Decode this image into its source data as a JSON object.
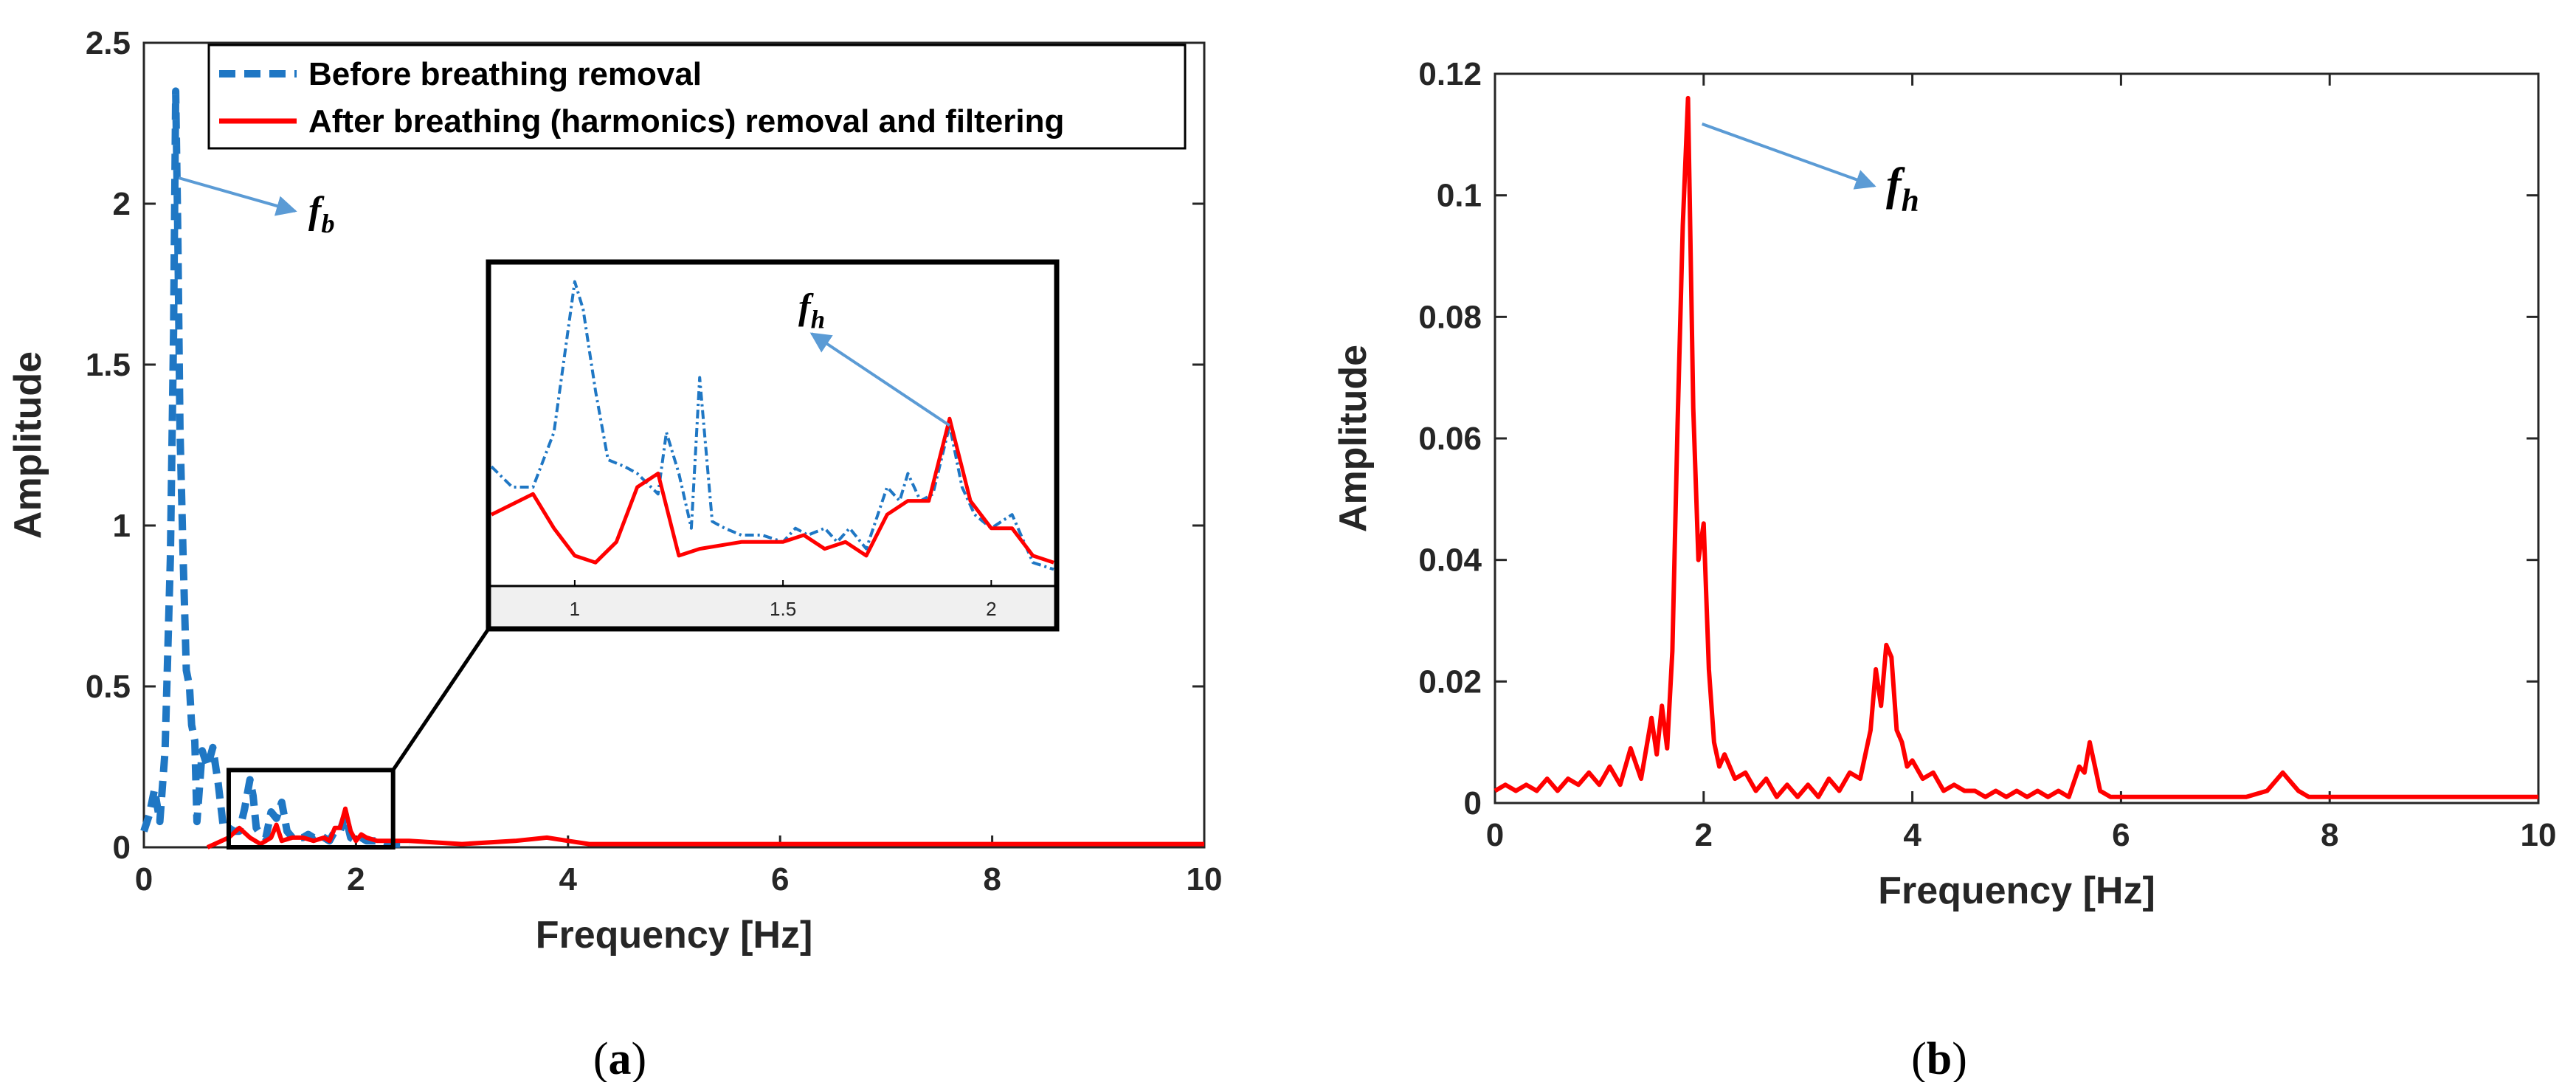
{
  "colors": {
    "before": "#1f77c4",
    "after": "#ff0000",
    "arrow": "#5b9bd5",
    "axis": "#262626",
    "inset_axis_band": "#f0f0f0"
  },
  "panels": {
    "a": {
      "caption_open": "(",
      "caption_letter": "a",
      "caption_close": ")"
    },
    "b": {
      "caption_open": "(",
      "caption_letter": "b",
      "caption_close": ")"
    }
  },
  "chart_data": [
    {
      "id": "a",
      "type": "line",
      "xlabel": "Frequency [Hz]",
      "ylabel": "Amplitude",
      "xlim": [
        0,
        10
      ],
      "ylim": [
        0,
        2.5
      ],
      "xticks": [
        0,
        2,
        4,
        6,
        8,
        10
      ],
      "xtick_labels": [
        "0",
        "2",
        "4",
        "6",
        "8",
        "10"
      ],
      "yticks": [
        0,
        0.5,
        1,
        1.5,
        2,
        2.5
      ],
      "ytick_labels": [
        "0",
        "0.5",
        "1",
        "1.5",
        "2",
        "2.5"
      ],
      "legend": {
        "position": "top",
        "entries": [
          "Before breathing removal",
          "After breathing (harmonics) removal and filtering"
        ]
      },
      "series": [
        {
          "name": "Before breathing removal",
          "style": "dashed",
          "x": [
            0.0,
            0.05,
            0.1,
            0.15,
            0.2,
            0.25,
            0.28,
            0.3,
            0.32,
            0.34,
            0.37,
            0.4,
            0.43,
            0.45,
            0.48,
            0.5,
            0.55,
            0.6,
            0.65,
            0.7,
            0.75,
            0.8,
            0.85,
            0.9,
            0.95,
            1.0,
            1.03,
            1.06,
            1.1,
            1.15,
            1.2,
            1.25,
            1.3,
            1.35,
            1.4,
            1.45,
            1.5,
            1.55,
            1.6,
            1.65,
            1.7,
            1.75,
            1.8,
            1.85,
            1.9,
            1.95,
            2.0,
            2.05,
            2.1,
            2.15,
            2.2,
            2.3,
            2.4,
            2.5
          ],
          "y": [
            0.05,
            0.1,
            0.18,
            0.08,
            0.3,
            0.9,
            1.6,
            2.35,
            1.9,
            1.3,
            0.9,
            0.55,
            0.5,
            0.38,
            0.33,
            0.08,
            0.3,
            0.25,
            0.31,
            0.2,
            0.06,
            0.06,
            0.05,
            0.05,
            0.12,
            0.21,
            0.16,
            0.06,
            0.04,
            0.03,
            0.11,
            0.09,
            0.14,
            0.05,
            0.03,
            0.03,
            0.03,
            0.04,
            0.03,
            0.04,
            0.03,
            0.02,
            0.05,
            0.05,
            0.1,
            0.03,
            0.02,
            0.03,
            0.02,
            0.02,
            0.02,
            0.01,
            0.01,
            0.01
          ]
        },
        {
          "name": "After breathing (harmonics) removal and filtering",
          "style": "solid",
          "x": [
            0.6,
            0.8,
            0.9,
            1.0,
            1.1,
            1.2,
            1.25,
            1.3,
            1.4,
            1.5,
            1.6,
            1.7,
            1.75,
            1.8,
            1.85,
            1.9,
            1.95,
            2.0,
            2.05,
            2.1,
            2.2,
            2.3,
            2.5,
            3.0,
            3.5,
            3.8,
            4.0,
            4.2,
            4.5,
            5.0,
            6.0,
            7.0,
            8.0,
            9.0,
            10.0
          ],
          "y": [
            0.0,
            0.03,
            0.06,
            0.03,
            0.01,
            0.03,
            0.07,
            0.02,
            0.03,
            0.03,
            0.02,
            0.03,
            0.02,
            0.06,
            0.06,
            0.12,
            0.05,
            0.02,
            0.04,
            0.03,
            0.02,
            0.02,
            0.02,
            0.01,
            0.02,
            0.03,
            0.02,
            0.01,
            0.01,
            0.01,
            0.01,
            0.01,
            0.01,
            0.01,
            0.01
          ]
        }
      ],
      "annotations": [
        {
          "text": "f",
          "subscript": "b",
          "target": [
            0.33,
            2.08
          ]
        }
      ],
      "inset": {
        "xlim": [
          0.8,
          2.15
        ],
        "ylim": [
          0.0,
          0.23
        ],
        "xticks": [
          1,
          1.5,
          2
        ],
        "xtick_labels": [
          "1",
          "1.5",
          "2"
        ],
        "source_region": {
          "x": [
            0.8,
            2.35
          ],
          "y": [
            0.0,
            0.24
          ]
        },
        "annotation": {
          "text": "f",
          "subscript": "h",
          "target": [
            1.9,
            0.115
          ]
        },
        "series": [
          {
            "name": "Before breathing removal",
            "style": "dashdot",
            "x": [
              0.8,
              0.85,
              0.9,
              0.95,
              1.0,
              1.02,
              1.05,
              1.08,
              1.12,
              1.15,
              1.2,
              1.22,
              1.25,
              1.28,
              1.3,
              1.33,
              1.36,
              1.4,
              1.45,
              1.5,
              1.53,
              1.56,
              1.6,
              1.63,
              1.66,
              1.7,
              1.75,
              1.78,
              1.8,
              1.83,
              1.86,
              1.9,
              1.93,
              1.96,
              2.0,
              2.05,
              2.1,
              2.15
            ],
            "y": [
              0.085,
              0.07,
              0.07,
              0.11,
              0.22,
              0.2,
              0.14,
              0.09,
              0.085,
              0.08,
              0.065,
              0.11,
              0.08,
              0.04,
              0.15,
              0.045,
              0.04,
              0.035,
              0.035,
              0.03,
              0.04,
              0.035,
              0.04,
              0.03,
              0.04,
              0.025,
              0.07,
              0.06,
              0.08,
              0.06,
              0.065,
              0.115,
              0.07,
              0.05,
              0.04,
              0.05,
              0.015,
              0.01
            ]
          },
          {
            "name": "After breathing (harmonics) removal and filtering",
            "style": "solid",
            "x": [
              0.8,
              0.9,
              0.95,
              1.0,
              1.05,
              1.1,
              1.15,
              1.2,
              1.25,
              1.3,
              1.4,
              1.5,
              1.55,
              1.6,
              1.65,
              1.7,
              1.75,
              1.8,
              1.85,
              1.9,
              1.95,
              2.0,
              2.05,
              2.1,
              2.15
            ],
            "y": [
              0.05,
              0.065,
              0.04,
              0.02,
              0.015,
              0.03,
              0.07,
              0.08,
              0.02,
              0.025,
              0.03,
              0.03,
              0.035,
              0.025,
              0.03,
              0.02,
              0.05,
              0.06,
              0.06,
              0.12,
              0.06,
              0.04,
              0.04,
              0.02,
              0.015
            ]
          }
        ]
      }
    },
    {
      "id": "b",
      "type": "line",
      "xlabel": "Frequency [Hz]",
      "ylabel": "Amplitude",
      "xlim": [
        0,
        10
      ],
      "ylim": [
        0,
        0.12
      ],
      "xticks": [
        0,
        2,
        4,
        6,
        8,
        10
      ],
      "xtick_labels": [
        "0",
        "2",
        "4",
        "6",
        "8",
        "10"
      ],
      "yticks": [
        0,
        0.02,
        0.04,
        0.06,
        0.08,
        0.1,
        0.12
      ],
      "ytick_labels": [
        "0",
        "0.02",
        "0.04",
        "0.06",
        "0.08",
        "0.1",
        "0.12"
      ],
      "series": [
        {
          "name": "After breathing (harmonics) removal and filtering",
          "style": "solid",
          "x": [
            0.0,
            0.1,
            0.2,
            0.3,
            0.4,
            0.5,
            0.6,
            0.7,
            0.8,
            0.9,
            1.0,
            1.1,
            1.2,
            1.3,
            1.4,
            1.5,
            1.55,
            1.6,
            1.65,
            1.7,
            1.75,
            1.8,
            1.85,
            1.9,
            1.95,
            2.0,
            2.05,
            2.1,
            2.15,
            2.2,
            2.3,
            2.4,
            2.5,
            2.6,
            2.7,
            2.8,
            2.9,
            3.0,
            3.1,
            3.2,
            3.3,
            3.4,
            3.5,
            3.6,
            3.65,
            3.7,
            3.75,
            3.8,
            3.85,
            3.9,
            3.95,
            4.0,
            4.1,
            4.2,
            4.3,
            4.4,
            4.5,
            4.6,
            4.7,
            4.8,
            4.9,
            5.0,
            5.1,
            5.2,
            5.3,
            5.4,
            5.5,
            5.6,
            5.65,
            5.7,
            5.75,
            5.8,
            5.9,
            6.0,
            6.2,
            6.4,
            6.6,
            6.8,
            7.0,
            7.2,
            7.4,
            7.5,
            7.55,
            7.6,
            7.7,
            7.8,
            8.0,
            8.5,
            9.0,
            9.5,
            10.0
          ],
          "y": [
            0.002,
            0.003,
            0.002,
            0.003,
            0.002,
            0.004,
            0.002,
            0.004,
            0.003,
            0.005,
            0.003,
            0.006,
            0.003,
            0.009,
            0.004,
            0.014,
            0.008,
            0.016,
            0.009,
            0.025,
            0.062,
            0.095,
            0.116,
            0.065,
            0.04,
            0.046,
            0.022,
            0.01,
            0.006,
            0.008,
            0.004,
            0.005,
            0.002,
            0.004,
            0.001,
            0.003,
            0.001,
            0.003,
            0.001,
            0.004,
            0.002,
            0.005,
            0.004,
            0.012,
            0.022,
            0.016,
            0.026,
            0.024,
            0.012,
            0.01,
            0.006,
            0.007,
            0.004,
            0.005,
            0.002,
            0.003,
            0.002,
            0.002,
            0.001,
            0.002,
            0.001,
            0.002,
            0.001,
            0.002,
            0.001,
            0.002,
            0.001,
            0.006,
            0.005,
            0.01,
            0.006,
            0.002,
            0.001,
            0.001,
            0.001,
            0.001,
            0.001,
            0.001,
            0.001,
            0.001,
            0.002,
            0.004,
            0.005,
            0.004,
            0.002,
            0.001,
            0.001,
            0.001,
            0.001,
            0.001,
            0.001
          ]
        }
      ],
      "annotations": [
        {
          "text": "f",
          "subscript": "h",
          "target": [
            1.9,
            0.116
          ]
        }
      ]
    }
  ]
}
